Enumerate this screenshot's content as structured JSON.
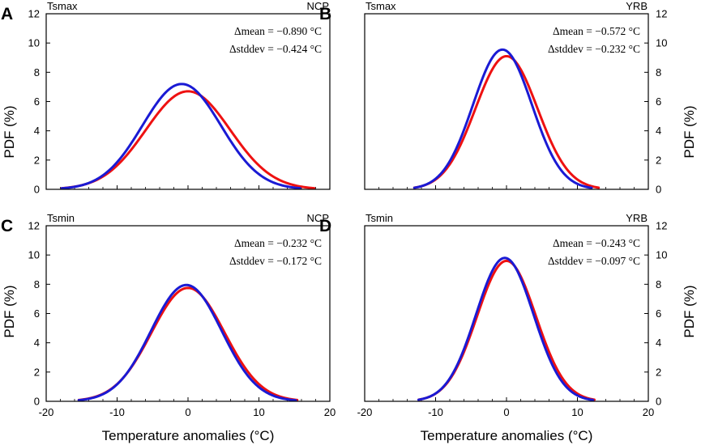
{
  "figure": {
    "xlabel": "Temperature anomalies (°C)",
    "ylabel": "PDF (%)"
  },
  "chart_data": [
    {
      "panel": "A",
      "type": "line",
      "left_title": "Tsmax",
      "right_title": "NCP",
      "xlim": [
        -20,
        20
      ],
      "ylim": [
        0,
        12
      ],
      "xticks": [
        -20,
        -10,
        0,
        10,
        20
      ],
      "yticks": [
        0,
        2,
        4,
        6,
        8,
        10,
        12
      ],
      "show_x_ticklabels": false,
      "y_axis_side": "left",
      "stats": [
        "Δmean = −0.890 °C",
        "Δstddev = −0.424 °C"
      ],
      "series": [
        {
          "name": "red",
          "color": "#ee1111",
          "mean": 0.0,
          "peak": 6.7,
          "sd": 5.95,
          "x_range": [
            -17.8,
            17.8
          ]
        },
        {
          "name": "blue",
          "color": "#1a1ad4",
          "mean": -0.89,
          "peak": 7.2,
          "sd": 5.53,
          "x_range": [
            -17.8,
            15.8
          ]
        }
      ]
    },
    {
      "panel": "B",
      "type": "line",
      "left_title": "Tsmax",
      "right_title": "YRB",
      "xlim": [
        -20,
        20
      ],
      "ylim": [
        0,
        12
      ],
      "xticks": [
        -20,
        -10,
        0,
        10,
        20
      ],
      "yticks": [
        0,
        2,
        4,
        6,
        8,
        10,
        12
      ],
      "show_x_ticklabels": false,
      "y_axis_side": "right",
      "stats": [
        "Δmean = −0.572 °C",
        "Δstddev = −0.232 °C"
      ],
      "series": [
        {
          "name": "red",
          "color": "#ee1111",
          "mean": 0.0,
          "peak": 9.1,
          "sd": 4.38,
          "x_range": [
            -13,
            13
          ]
        },
        {
          "name": "blue",
          "color": "#1a1ad4",
          "mean": -0.57,
          "peak": 9.55,
          "sd": 4.15,
          "x_range": [
            -13,
            12
          ]
        }
      ]
    },
    {
      "panel": "C",
      "type": "line",
      "left_title": "Tsmin",
      "right_title": "NCP",
      "xlim": [
        -20,
        20
      ],
      "ylim": [
        0,
        12
      ],
      "xticks": [
        -20,
        -10,
        0,
        10,
        20
      ],
      "yticks": [
        0,
        2,
        4,
        6,
        8,
        10,
        12
      ],
      "show_x_ticklabels": true,
      "y_axis_side": "left",
      "stats": [
        "Δmean = −0.232 °C",
        "Δstddev = −0.172 °C"
      ],
      "series": [
        {
          "name": "red",
          "color": "#ee1111",
          "mean": 0.0,
          "peak": 7.75,
          "sd": 5.15,
          "x_range": [
            -15.4,
            15.4
          ]
        },
        {
          "name": "blue",
          "color": "#1a1ad4",
          "mean": -0.23,
          "peak": 7.95,
          "sd": 4.98,
          "x_range": [
            -15.4,
            15.2
          ]
        }
      ]
    },
    {
      "panel": "D",
      "type": "line",
      "left_title": "Tsmin",
      "right_title": "YRB",
      "xlim": [
        -20,
        20
      ],
      "ylim": [
        0,
        12
      ],
      "xticks": [
        -20,
        -10,
        0,
        10,
        20
      ],
      "yticks": [
        0,
        2,
        4,
        6,
        8,
        10,
        12
      ],
      "show_x_ticklabels": true,
      "y_axis_side": "right",
      "stats": [
        "Δmean = −0.243 °C",
        "Δstddev = −0.097 °C"
      ],
      "series": [
        {
          "name": "red",
          "color": "#ee1111",
          "mean": 0.0,
          "peak": 9.6,
          "sd": 4.15,
          "x_range": [
            -12.4,
            12.4
          ]
        },
        {
          "name": "blue",
          "color": "#1a1ad4",
          "mean": -0.24,
          "peak": 9.8,
          "sd": 4.05,
          "x_range": [
            -12.4,
            12.2
          ]
        }
      ]
    }
  ]
}
